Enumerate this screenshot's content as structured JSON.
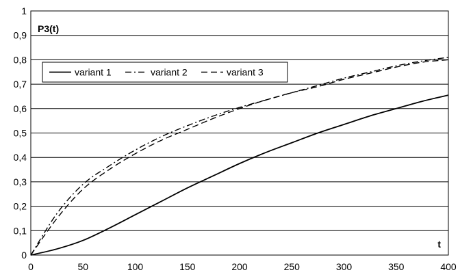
{
  "chart_data": {
    "type": "line",
    "xlabel": "t",
    "ylabel": "P3(t)",
    "xlim": [
      0,
      400
    ],
    "ylim": [
      0,
      1
    ],
    "x_ticks": [
      "0",
      "50",
      "100",
      "150",
      "200",
      "250",
      "300",
      "350",
      "400"
    ],
    "y_ticks": [
      "0",
      "0,1",
      "0,2",
      "0,3",
      "0,4",
      "0,5",
      "0,6",
      "0,7",
      "0,8",
      "0,9",
      "1"
    ],
    "grid": "horizontal",
    "legend": "top-left",
    "x": [
      0,
      25,
      50,
      75,
      100,
      125,
      150,
      175,
      200,
      225,
      250,
      275,
      300,
      325,
      350,
      375,
      400
    ],
    "series": [
      {
        "name": "variant 1",
        "dash": "solid",
        "color": "#000000",
        "values": [
          0,
          0.025,
          0.06,
          0.11,
          0.165,
          0.22,
          0.275,
          0.325,
          0.375,
          0.42,
          0.46,
          0.5,
          0.535,
          0.57,
          0.6,
          0.63,
          0.655
        ]
      },
      {
        "name": "variant 2",
        "dash": "dashdot",
        "color": "#000000",
        "values": [
          0,
          0.17,
          0.29,
          0.365,
          0.43,
          0.485,
          0.53,
          0.57,
          0.605,
          0.635,
          0.665,
          0.695,
          0.725,
          0.75,
          0.775,
          0.795,
          0.81
        ]
      },
      {
        "name": "variant 3",
        "dash": "dash",
        "color": "#000000",
        "values": [
          0,
          0.15,
          0.27,
          0.35,
          0.415,
          0.47,
          0.515,
          0.56,
          0.6,
          0.635,
          0.665,
          0.69,
          0.72,
          0.745,
          0.77,
          0.79,
          0.8
        ]
      }
    ]
  }
}
